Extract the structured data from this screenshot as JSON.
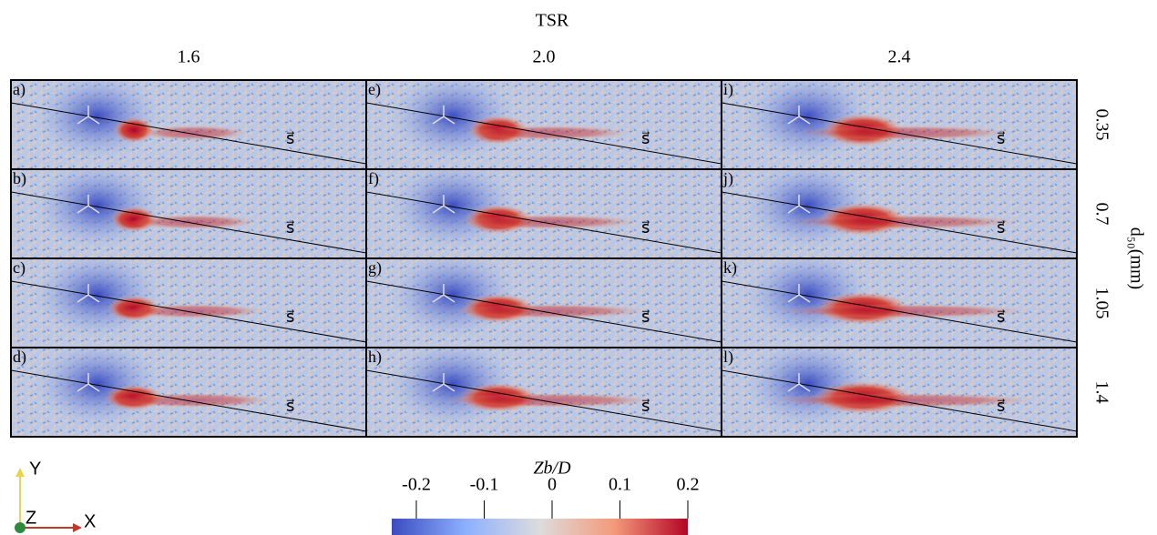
{
  "header": {
    "title": "TSR",
    "columns": [
      "1.6",
      "2.0",
      "2.4"
    ]
  },
  "rows": {
    "title": "d₅₀(mm)",
    "labels": [
      "0.35",
      "0.7",
      "1.05",
      "1.4"
    ]
  },
  "panels": {
    "labels": [
      "a)",
      "b)",
      "c)",
      "d)",
      "e)",
      "f)",
      "g)",
      "h)",
      "i)",
      "j)",
      "k)",
      "l)"
    ],
    "vector": "s⃗"
  },
  "colorbar": {
    "label": "Zb/D",
    "lim": [
      -0.2,
      0.2
    ],
    "ticks": [
      -0.2,
      -0.1,
      0,
      0.1,
      0.2
    ]
  },
  "axes_icon": {
    "y": "Y",
    "x": "X",
    "z": "Z"
  }
}
